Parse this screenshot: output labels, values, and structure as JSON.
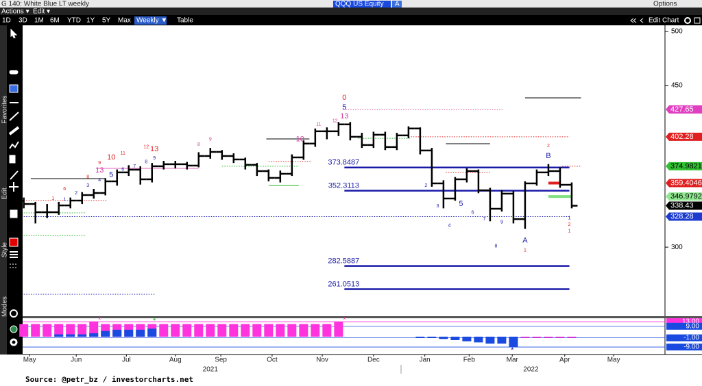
{
  "ui": {
    "window_title": "G 140: White Blue LT weekly",
    "menus": [
      "Actions ▾",
      "Edit ▾"
    ],
    "ticker": "QQQ US Equity",
    "ticker_tag": "A",
    "options": "Options",
    "ranges": [
      "1D",
      "3D",
      "1M",
      "6M",
      "YTD",
      "1Y",
      "5Y",
      "Max"
    ],
    "frequency": "Weekly ▼",
    "table": "Table",
    "edit_chart": "Edit Chart",
    "side_labels": [
      "Favorites",
      "Edit",
      "Style",
      "Modes"
    ],
    "source": "Source: @petr_bz / investorcharts.net"
  },
  "chart_data": [
    {
      "type": "ohlc",
      "x": [
        0,
        1,
        2,
        3,
        4,
        5,
        6,
        7,
        8,
        9,
        10,
        11,
        12,
        13,
        14,
        15,
        16,
        17,
        18,
        19,
        20,
        21,
        22,
        23,
        24,
        25,
        26,
        27,
        28,
        29,
        30,
        31,
        32,
        33,
        34,
        35,
        36,
        37,
        38,
        39,
        40,
        41,
        42,
        43,
        44,
        45,
        46,
        47
      ],
      "open": [
        343,
        340.0,
        332.4,
        332.4,
        338.7,
        343.2,
        348.3,
        350.2,
        361.0,
        369.3,
        371.8,
        362.9,
        375.0,
        376.9,
        376.9,
        375.6,
        384.5,
        388.3,
        384.5,
        381.3,
        376.3,
        370.5,
        364.2,
        368.0,
        383.2,
        396.0,
        407.4,
        407.4,
        413.8,
        402.3,
        394.7,
        404.2,
        392.8,
        403.6,
        410.0,
        389.6,
        359.1,
        345.1,
        362.9,
        370.5,
        352.7,
        335.6,
        349.6,
        326.0,
        359.1,
        369.3,
        370.5,
        357.8
      ],
      "high": [
        346,
        342,
        340,
        342,
        346,
        351,
        354,
        364,
        372,
        376,
        375,
        378,
        380,
        380,
        379,
        388,
        392,
        390,
        387,
        383,
        378,
        372,
        371,
        386,
        399,
        410,
        411,
        416,
        416,
        406,
        407,
        407,
        406,
        412,
        411,
        392,
        362,
        365,
        373,
        372,
        355,
        353,
        352,
        361,
        372,
        377,
        374,
        360
      ],
      "low": [
        336,
        322,
        327,
        330,
        336,
        340,
        345,
        348,
        357,
        366,
        358,
        360,
        372,
        373,
        372,
        374,
        382,
        381,
        378,
        372,
        366,
        361,
        360,
        366,
        381,
        393,
        400,
        403,
        399,
        392,
        392,
        390,
        390,
        401,
        386,
        356,
        336,
        343,
        360,
        350,
        324,
        333,
        322,
        317,
        357,
        366,
        355,
        336
      ],
      "close": [
        340.0,
        332.4,
        332.4,
        338.7,
        343.2,
        348.3,
        350.2,
        361.0,
        369.3,
        371.8,
        362.9,
        375.0,
        376.9,
        376.9,
        375.6,
        384.5,
        388.3,
        384.5,
        381.3,
        376.3,
        370.5,
        364.2,
        368.0,
        383.2,
        396.0,
        407.4,
        407.4,
        413.8,
        402.3,
        394.7,
        404.2,
        392.8,
        403.6,
        410.0,
        389.6,
        359.1,
        345.1,
        362.9,
        370.5,
        352.7,
        335.6,
        349.6,
        326.0,
        359.1,
        369.3,
        370.5,
        357.8,
        338.4
      ],
      "color": "#000000",
      "xlim": [
        -0.1,
        55
      ],
      "ylim": [
        236,
        505
      ],
      "yticks": [
        300,
        450,
        500
      ],
      "xticks": [
        {
          "value": 0.5,
          "label": "May"
        },
        {
          "value": 4.5,
          "label": "Jun"
        },
        {
          "value": 8.8,
          "label": "Jul"
        },
        {
          "value": 13,
          "label": "Aug"
        },
        {
          "value": 16.9,
          "label": "Sep"
        },
        {
          "value": 21.3,
          "label": "Oct"
        },
        {
          "value": 25.6,
          "label": "Nov"
        },
        {
          "value": 30,
          "label": "Dec"
        },
        {
          "value": 34.4,
          "label": "Jan"
        },
        {
          "value": 38.2,
          "label": "Feb"
        },
        {
          "value": 41.9,
          "label": "Mar"
        },
        {
          "value": 46.4,
          "label": "Apr"
        },
        {
          "value": 50.6,
          "label": "May"
        }
      ],
      "year_labels": [
        {
          "value": 16,
          "label": "2021"
        },
        {
          "value": 43.5,
          "label": "2022"
        }
      ],
      "labeled_levels": [
        {
          "value": 373.8487,
          "x": [
            27.5,
            46.8
          ],
          "color": "#1a1aa8"
        },
        {
          "value": 352.3113,
          "x": [
            27.5,
            46.8
          ],
          "color": "#1a1aa8"
        },
        {
          "value": 282.5887,
          "x": [
            27.5,
            46.8
          ],
          "color": "#1a1aa8"
        },
        {
          "value": 261.0513,
          "x": [
            27.5,
            46.8
          ],
          "color": "#1a1aa8"
        }
      ],
      "lines": [
        {
          "value": 328.28,
          "x": [
            0,
            46.8
          ],
          "color": "#1a1aa8",
          "style": "dotted"
        },
        {
          "value": 427.65,
          "x": [
            27.4,
            41.1
          ],
          "color": "#e0409a",
          "style": "dotted"
        },
        {
          "value": 402.28,
          "x": [
            33.2,
            46.8
          ],
          "color": "#e02020",
          "style": "dotted"
        },
        {
          "value": 374.9821,
          "x": [
            46.2,
            47.8
          ],
          "color": "#e02020",
          "style": "dotted"
        },
        {
          "value": 363.5,
          "x": [
            0.6,
            7
          ],
          "color": "#000000",
          "style": "solid"
        },
        {
          "value": 400.3,
          "x": [
            20.8,
            24.5
          ],
          "color": "#000000",
          "style": "solid"
        },
        {
          "value": 395.9,
          "x": [
            36.2,
            40
          ],
          "color": "#000000",
          "style": "solid"
        },
        {
          "value": 438.4,
          "x": [
            43,
            47.8
          ],
          "color": "#000000",
          "style": "solid"
        },
        {
          "value": 373,
          "x": [
            6.2,
            15
          ],
          "color": "#e060c0",
          "style": "solid"
        },
        {
          "value": 343.2,
          "x": [
            0,
            7.2
          ],
          "color": "#e02020",
          "style": "dotted"
        },
        {
          "value": 331.8,
          "x": [
            0,
            5.3
          ],
          "color": "#20b020",
          "style": "dotted"
        },
        {
          "value": 310.8,
          "x": [
            0,
            5.3
          ],
          "color": "#20b020",
          "style": "dotted"
        },
        {
          "value": 375,
          "x": [
            17,
            23.6
          ],
          "color": "#20b020",
          "style": "dotted"
        },
        {
          "value": 379.4,
          "x": [
            21,
            24.7
          ],
          "color": "#e02020",
          "style": "dotted"
        },
        {
          "value": 357.2,
          "x": [
            21,
            23.6
          ],
          "color": "#20b020",
          "style": "solid"
        },
        {
          "value": 400.9,
          "x": [
            28.7,
            33.2
          ],
          "color": "#20b020",
          "style": "dotted"
        },
        {
          "value": 369.2,
          "x": [
            36.2,
            40
          ],
          "color": "#e02020",
          "style": "dotted"
        },
        {
          "value": 256.3,
          "x": [
            0,
            11.2
          ],
          "color": "#1a1aa8",
          "style": "dotted"
        },
        {
          "value": 359.4046,
          "x": [
            45,
            46
          ],
          "color": "#e02020",
          "style": "thick"
        },
        {
          "value": 346.9792,
          "x": [
            45,
            47
          ],
          "color": "#80e080",
          "style": "thick"
        }
      ],
      "price_tags": [
        {
          "value": 427.65,
          "color": "#e040c0",
          "text_color": "#ffffff"
        },
        {
          "value": 402.28,
          "color": "#e02020",
          "text_color": "#ffffff"
        },
        {
          "value": 374.9821,
          "color": "#30c030",
          "text_color": "#000000"
        },
        {
          "value": 359.4046,
          "color": "#e02020",
          "text_color": "#ffffff"
        },
        {
          "value": 346.9792,
          "color": "#90e890",
          "text_color": "#000000"
        },
        {
          "value": 338.43,
          "color": "#000000",
          "text_color": "#ffffff"
        },
        {
          "value": 328.28,
          "color": "#1a3ad0",
          "text_color": "#ffffff"
        }
      ],
      "annotations": [
        {
          "label": "13",
          "x": 6.5,
          "y": 371.1,
          "color": "#d6389b"
        },
        {
          "label": "13",
          "x": 11.2,
          "y": 390.8,
          "color": "#e02020"
        },
        {
          "label": "9",
          "x": 11.2,
          "y": 382.5,
          "color": "#1a1aa8"
        },
        {
          "label": "1",
          "x": 2.5,
          "y": 345,
          "color": "#e02020"
        },
        {
          "label": "6",
          "x": 3.5,
          "y": 354,
          "color": "#e02020"
        },
        {
          "label": "8",
          "x": 5.5,
          "y": 365,
          "color": "#e02020"
        },
        {
          "label": "9",
          "x": 6.5,
          "y": 378,
          "color": "#e02020"
        },
        {
          "label": "10",
          "x": 7.5,
          "y": 383,
          "color": "#e02020"
        },
        {
          "label": "11",
          "x": 8.5,
          "y": 387,
          "color": "#e02020"
        },
        {
          "label": "12",
          "x": 10.5,
          "y": 393,
          "color": "#e02020"
        },
        {
          "label": "1",
          "x": 3.5,
          "y": 344,
          "color": "#1a1aa8"
        },
        {
          "label": "2",
          "x": 4.5,
          "y": 350,
          "color": "#1a1aa8"
        },
        {
          "label": "3",
          "x": 5.5,
          "y": 357,
          "color": "#1a1aa8"
        },
        {
          "label": "4",
          "x": 6.5,
          "y": 362,
          "color": "#1a1aa8"
        },
        {
          "label": "5",
          "x": 7.5,
          "y": 367,
          "color": "#1a1aa8"
        },
        {
          "label": "6",
          "x": 8.5,
          "y": 372,
          "color": "#1a1aa8"
        },
        {
          "label": "7",
          "x": 9.5,
          "y": 375,
          "color": "#1a1aa8"
        },
        {
          "label": "8",
          "x": 10.5,
          "y": 379,
          "color": "#1a1aa8"
        },
        {
          "label": "8",
          "x": 15,
          "y": 395,
          "color": "#d6389b"
        },
        {
          "label": "9",
          "x": 16,
          "y": 400,
          "color": "#d6389b"
        },
        {
          "label": "10",
          "x": 23.7,
          "y": 400,
          "color": "#d6389b"
        },
        {
          "label": "11",
          "x": 25.3,
          "y": 414,
          "color": "#d6389b"
        },
        {
          "label": "12",
          "x": 26.7,
          "y": 417,
          "color": "#d6389b"
        },
        {
          "label": "0",
          "x": 27.5,
          "y": 438.4,
          "color": "#e02020"
        },
        {
          "label": "5",
          "x": 27.5,
          "y": 429.5,
          "color": "#1a1aa8"
        },
        {
          "label": "13",
          "x": 27.5,
          "y": 421.2,
          "color": "#d6389b"
        },
        {
          "label": "2",
          "x": 34.5,
          "y": 357,
          "color": "#1a1aa8"
        },
        {
          "label": "3",
          "x": 35.5,
          "y": 338,
          "color": "#1a1aa8"
        },
        {
          "label": "4",
          "x": 36.5,
          "y": 320,
          "color": "#1a1aa8"
        },
        {
          "label": "5",
          "x": 37.5,
          "y": 340,
          "color": "#1a1aa8"
        },
        {
          "label": "6",
          "x": 38.5,
          "y": 332,
          "color": "#1a1aa8"
        },
        {
          "label": "7",
          "x": 39.5,
          "y": 326,
          "color": "#1a1aa8"
        },
        {
          "label": "8",
          "x": 40.5,
          "y": 301,
          "color": "#1a1aa8"
        },
        {
          "label": "9",
          "x": 41,
          "y": 323,
          "color": "#1a1aa8"
        },
        {
          "label": "A",
          "x": 43,
          "y": 306,
          "color": "#1a1aa8"
        },
        {
          "label": "1",
          "x": 43,
          "y": 297,
          "color": "#e02020"
        },
        {
          "label": "2",
          "x": 45,
          "y": 394,
          "color": "#e02020"
        },
        {
          "label": "B",
          "x": 45,
          "y": 384.4,
          "color": "#1a1aa8"
        },
        {
          "label": "1",
          "x": 46.8,
          "y": 327,
          "color": "#1a1aa8"
        },
        {
          "label": "2",
          "x": 46.8,
          "y": 321,
          "color": "#e02020"
        },
        {
          "label": "1",
          "x": 46.8,
          "y": 315,
          "color": "#e02020"
        }
      ]
    },
    {
      "type": "bar",
      "series": [
        {
          "color": "#ff33dd",
          "values": [
            11,
            11,
            11,
            11,
            11,
            11,
            13,
            11,
            11,
            11,
            11,
            11,
            11,
            11,
            11,
            11,
            11,
            11,
            11,
            11,
            11,
            11,
            11,
            11,
            11,
            11,
            11,
            13,
            null,
            null,
            null,
            null,
            null,
            null,
            null,
            null,
            null,
            null,
            null,
            null,
            null,
            null,
            null,
            -1,
            -1,
            -1,
            -1,
            -1
          ]
        },
        {
          "color": "#1a4ae0",
          "values": [
            null,
            null,
            null,
            2,
            2,
            2,
            3,
            5,
            6,
            6,
            6,
            7,
            null,
            null,
            null,
            null,
            null,
            null,
            null,
            null,
            null,
            null,
            null,
            null,
            null,
            null,
            null,
            null,
            null,
            null,
            null,
            null,
            null,
            null,
            -1,
            -1,
            -2,
            -3,
            -4,
            -5,
            -6,
            -6,
            -9,
            null,
            null,
            null,
            null,
            null
          ]
        }
      ],
      "ylim": [
        -15.5,
        16
      ],
      "yticks": [
        {
          "value": 13,
          "label": "13.00"
        },
        {
          "value": 9,
          "label": "9.00"
        },
        {
          "value": -1,
          "label": "-1.00"
        },
        {
          "value": -9,
          "label": "-9.00"
        }
      ],
      "tick_colors": [
        "#ff33dd",
        "#1a4ae0",
        "#1a4ae0",
        "#1a4ae0"
      ],
      "annotations": [
        {
          "label": "*",
          "x": 6.5,
          "y": 14.5,
          "color": "#d6389b"
        },
        {
          "label": "*",
          "x": 11.2,
          "y": 13.5,
          "color": "#20b020"
        },
        {
          "label": "*",
          "x": 27.5,
          "y": 14.5,
          "color": "#d6389b"
        },
        {
          "label": "*",
          "x": 41.9,
          "y": -12,
          "color": "#1a1aa8"
        }
      ]
    }
  ]
}
